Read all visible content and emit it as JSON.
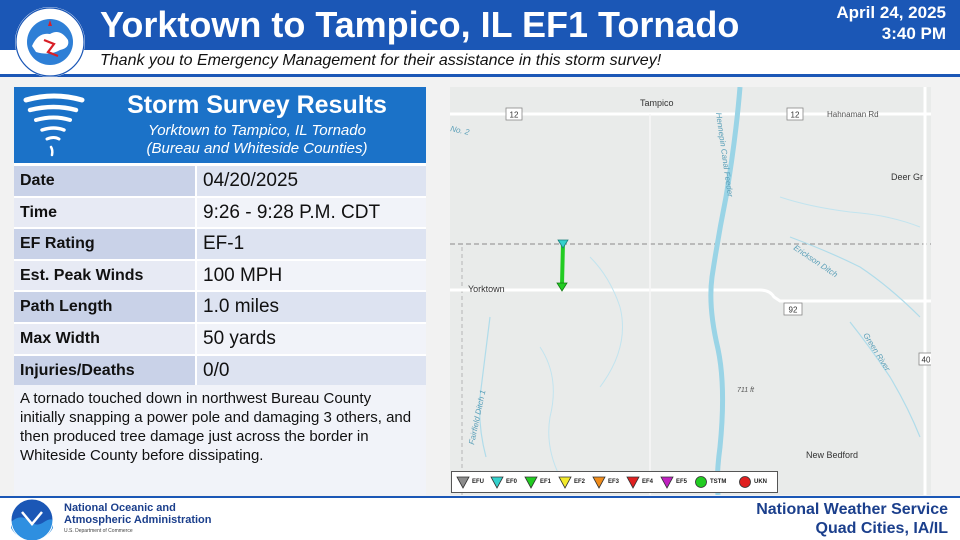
{
  "header": {
    "title": "Yorktown to Tampico, IL EF1 Tornado",
    "date": "April 24, 2025",
    "time": "3:40 PM",
    "subtitle": "Thank you to Emergency Management for their assistance in this storm survey!",
    "logo_icon": "nws-logo-icon",
    "logo_text": "NATIONAL WEATHER SERVICE"
  },
  "colors": {
    "header_blue": "#1b57b6",
    "panel_blue": "#1b72c8",
    "track_green": "#22cc22",
    "footer_text": "#1b3f8c"
  },
  "panel": {
    "icon": "tornado-icon",
    "title": "Storm Survey Results",
    "subtitle_line1": "Yorktown to Tampico, IL Tornado",
    "subtitle_line2": "(Bureau and Whiteside Counties)",
    "rows": [
      {
        "label": "Date",
        "value": "04/20/2025"
      },
      {
        "label": "Time",
        "value": "9:26 - 9:28 P.M. CDT"
      },
      {
        "label": "EF Rating",
        "value": "EF-1"
      },
      {
        "label": "Est. Peak Winds",
        "value": "100 MPH"
      },
      {
        "label": "Path Length",
        "value": "1.0 miles"
      },
      {
        "label": "Max Width",
        "value": "50 yards"
      },
      {
        "label": "Injuries/Deaths",
        "value": "0/0"
      }
    ],
    "description": "A tornado touched down in northwest Bureau County initially snapping a power pole and damaging 3 others, and then produced tree damage just across the border in Whiteside County before dissipating."
  },
  "map": {
    "places": {
      "tampico": "Tampico",
      "yorktown": "Yorktown",
      "new_bedford": "New Bedford",
      "deer_grove": "Deer Gr",
      "hahnaman": "Hahnaman Rd"
    },
    "roads": {
      "r12a": "12",
      "r12b": "12",
      "r92": "92",
      "r40": "40"
    },
    "water": {
      "canal": "Hennepin Canal Feeder",
      "erickson": "Erickson Ditch",
      "green_river": "Green River",
      "fairfield": "Fairfield Ditch 1",
      "no2": "No. 2"
    },
    "elevation": "711 ft",
    "legend": [
      {
        "label": "EFU",
        "color": "#8c8c8c",
        "shape": "triangle"
      },
      {
        "label": "EF0",
        "color": "#33d1cc",
        "shape": "triangle"
      },
      {
        "label": "EF1",
        "color": "#22cc22",
        "shape": "triangle"
      },
      {
        "label": "EF2",
        "color": "#f3ea2b",
        "shape": "triangle"
      },
      {
        "label": "EF3",
        "color": "#f08c1a",
        "shape": "triangle"
      },
      {
        "label": "EF4",
        "color": "#e02020",
        "shape": "triangle"
      },
      {
        "label": "EF5",
        "color": "#c020c0",
        "shape": "triangle"
      },
      {
        "label": "TSTM",
        "color": "#22cc22",
        "shape": "circle"
      },
      {
        "label": "UKN",
        "color": "#e02020",
        "shape": "circle"
      }
    ]
  },
  "footer": {
    "noaa_icon": "noaa-logo-icon",
    "noaa_line1": "National Oceanic and",
    "noaa_line2": "Atmospheric Administration",
    "noaa_dept": "U.S. Department of Commerce",
    "office_line1": "National Weather Service",
    "office_line2": "Quad Cities, IA/IL"
  }
}
